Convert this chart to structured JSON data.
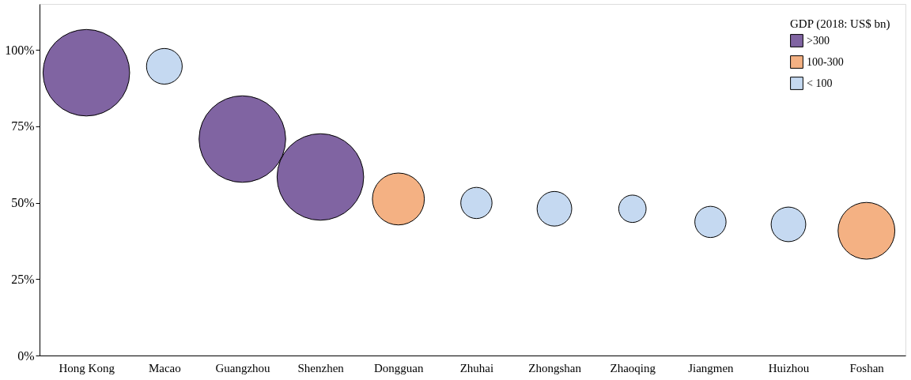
{
  "chart_data": {
    "type": "bubble",
    "legend_title": "GDP (2018: US$ bn)",
    "legend": "top right",
    "grid": false,
    "categories": [
      "Hong Kong",
      "Macao",
      "Guangzhou",
      "Shenzhen",
      "Dongguan",
      "Zhuhai",
      "Zhongshan",
      "Zhaoqing",
      "Jiangmen",
      "Huizhou",
      "Foshan"
    ],
    "ylim": [
      0,
      115
    ],
    "yticks": [
      {
        "value": 0,
        "label": "0%"
      },
      {
        "value": 25,
        "label": "25%"
      },
      {
        "value": 50,
        "label": "50%"
      },
      {
        "value": 75,
        "label": "75%"
      },
      {
        "value": 100,
        "label": "100%"
      }
    ],
    "series": [
      {
        "name": ">300",
        "color": "#8064a2",
        "values": [
          92.5,
          null,
          70.8,
          58.4,
          null,
          null,
          null,
          null,
          null,
          null,
          null
        ],
        "sizes": [
          1,
          null,
          1,
          1,
          null,
          null,
          null,
          null,
          null,
          null,
          null
        ]
      },
      {
        "name": "100-300",
        "color": "#f4b183",
        "values": [
          null,
          null,
          null,
          null,
          51.2,
          null,
          null,
          null,
          null,
          null,
          40.8
        ],
        "sizes": [
          null,
          null,
          null,
          null,
          0.36,
          null,
          null,
          null,
          null,
          null,
          0.43
        ]
      },
      {
        "name": "< 100",
        "color": "#c5d9f1",
        "values": [
          null,
          94.6,
          null,
          null,
          null,
          49.9,
          48,
          48,
          43.7,
          42.9,
          null
        ],
        "sizes": [
          null,
          0.17,
          null,
          null,
          null,
          0.13,
          0.16,
          0.1,
          0.13,
          0.16,
          null
        ]
      }
    ]
  }
}
